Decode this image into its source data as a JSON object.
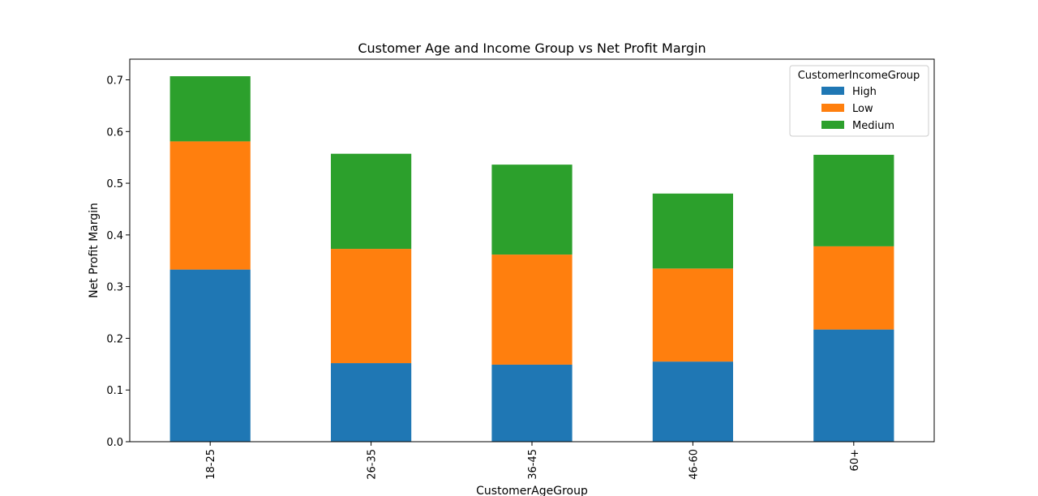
{
  "chart_data": {
    "type": "bar",
    "stacked": true,
    "title": "Customer Age and Income Group vs Net Profit Margin",
    "xlabel": "CustomerAgeGroup",
    "ylabel": "Net Profit Margin",
    "categories": [
      "18-25",
      "26-35",
      "36-45",
      "46-60",
      "60+"
    ],
    "series": [
      {
        "name": "High",
        "color": "#1f77b4",
        "values": [
          0.333,
          0.152,
          0.149,
          0.155,
          0.217
        ]
      },
      {
        "name": "Low",
        "color": "#ff7f0e",
        "values": [
          0.248,
          0.221,
          0.213,
          0.18,
          0.161
        ]
      },
      {
        "name": "Medium",
        "color": "#2ca02c",
        "values": [
          0.126,
          0.184,
          0.174,
          0.145,
          0.177
        ]
      }
    ],
    "ylim": [
      0,
      0.74
    ],
    "yticks": [
      "0.0",
      "0.1",
      "0.2",
      "0.3",
      "0.4",
      "0.5",
      "0.6",
      "0.7"
    ],
    "grid": false,
    "legend": {
      "title": "CustomerIncomeGroup",
      "position": "top-right"
    }
  }
}
